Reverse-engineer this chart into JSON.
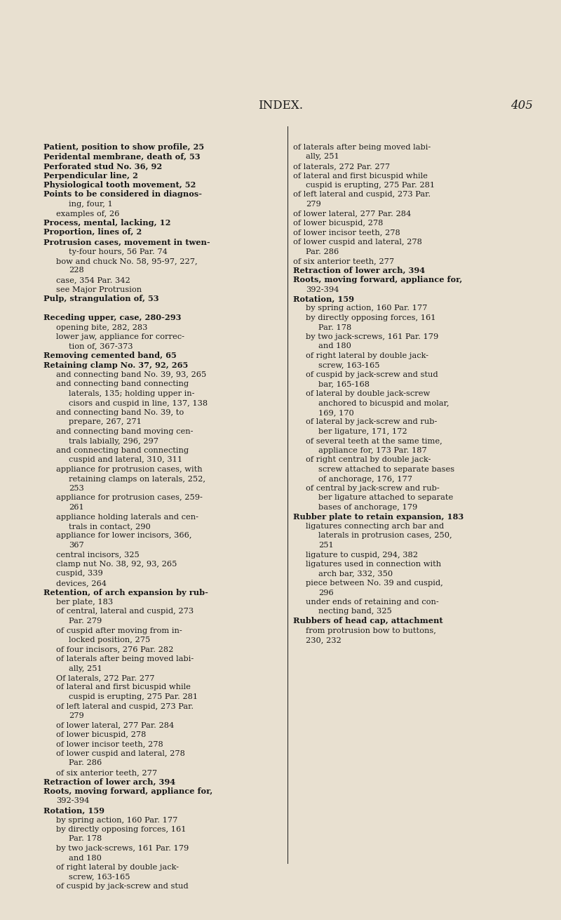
{
  "bg_color": "#e8e0d0",
  "text_color": "#1a1a1a",
  "title": "INDEX.",
  "page_num": "405",
  "font_size": 8.2,
  "title_font_size": 12,
  "left_column": [
    [
      "Patient, position to show profile, 25",
      "bold",
      0
    ],
    [
      "Peridental membrane, death of, 53",
      "bold",
      0
    ],
    [
      "Perforated stud No. 36, 92",
      "bold",
      0
    ],
    [
      "Perpendicular line, 2",
      "bold",
      0
    ],
    [
      "Physiological tooth movement, 52",
      "bold",
      0
    ],
    [
      "Points to be considered in diagnos-",
      "bold",
      0
    ],
    [
      "ing, four, 1",
      "normal",
      2
    ],
    [
      "examples of, 26",
      "normal",
      1
    ],
    [
      "Process, mental, lacking, 12",
      "bold",
      0
    ],
    [
      "Proportion, lines of, 2",
      "bold",
      0
    ],
    [
      "Protrusion cases, movement in twen-",
      "bold",
      0
    ],
    [
      "ty-four hours, 56 Par. 74",
      "normal",
      2
    ],
    [
      "bow and chuck No. 58, 95-97, 227,",
      "normal",
      1
    ],
    [
      "228",
      "normal",
      2
    ],
    [
      "case, 354 Par. 342",
      "normal",
      1
    ],
    [
      "see Major Protrusion",
      "normal",
      1
    ],
    [
      "Pulp, strangulation of, 53",
      "bold",
      0
    ],
    [
      "",
      "normal",
      0
    ],
    [
      "Receding upper, case, 280-293",
      "bold",
      0
    ],
    [
      "opening bite, 282, 283",
      "normal",
      1
    ],
    [
      "lower jaw, appliance for correc-",
      "normal",
      1
    ],
    [
      "tion of, 367-373",
      "normal",
      2
    ],
    [
      "Removing cemented band, 65",
      "bold",
      0
    ],
    [
      "Retaining clamp No. 37, 92, 265",
      "bold",
      0
    ],
    [
      "and connecting band No. 39, 93, 265",
      "normal",
      1
    ],
    [
      "and connecting band connecting",
      "normal",
      1
    ],
    [
      "laterals, 135; holding upper in-",
      "normal",
      2
    ],
    [
      "cisors and cuspid in line, 137, 138",
      "normal",
      2
    ],
    [
      "and connecting band No. 39, to",
      "normal",
      1
    ],
    [
      "prepare, 267, 271",
      "normal",
      2
    ],
    [
      "and connecting band moving cen-",
      "normal",
      1
    ],
    [
      "trals labially, 296, 297",
      "normal",
      2
    ],
    [
      "and connecting band connecting",
      "normal",
      1
    ],
    [
      "cuspid and lateral, 310, 311",
      "normal",
      2
    ],
    [
      "appliance for protrusion cases, with",
      "normal",
      1
    ],
    [
      "retaining clamps on laterals, 252,",
      "normal",
      2
    ],
    [
      "253",
      "normal",
      2
    ],
    [
      "appliance for protrusion cases, 259-",
      "normal",
      1
    ],
    [
      "261",
      "normal",
      2
    ],
    [
      "appliance holding laterals and cen-",
      "normal",
      1
    ],
    [
      "trals in contact, 290",
      "normal",
      2
    ],
    [
      "appliance for lower incisors, 366,",
      "normal",
      1
    ],
    [
      "367",
      "normal",
      2
    ],
    [
      "central incisors, 325",
      "normal",
      1
    ],
    [
      "clamp nut No. 38, 92, 93, 265",
      "normal",
      1
    ],
    [
      "cuspid, 339",
      "normal",
      1
    ],
    [
      "devices, 264",
      "normal",
      1
    ],
    [
      "Retention, of arch expansion by rub-",
      "bold",
      0
    ],
    [
      "ber plate, 183",
      "normal",
      1
    ],
    [
      "of central, lateral and cuspid, 273",
      "normal",
      1
    ],
    [
      "Par. 279",
      "normal",
      2
    ],
    [
      "of cuspid after moving from in-",
      "normal",
      1
    ],
    [
      "locked position, 275",
      "normal",
      2
    ],
    [
      "of four incisors, 276 Par. 282",
      "normal",
      1
    ],
    [
      "of laterals after being moved labi-",
      "normal",
      1
    ],
    [
      "ally, 251",
      "normal",
      2
    ],
    [
      "Of laterals, 272 Par. 277",
      "normal",
      1
    ],
    [
      "of lateral and first bicuspid while",
      "normal",
      1
    ],
    [
      "cuspid is erupting, 275 Par. 281",
      "normal",
      2
    ],
    [
      "of left lateral and cuspid, 273 Par.",
      "normal",
      1
    ],
    [
      "279",
      "normal",
      2
    ],
    [
      "of lower lateral, 277 Par. 284",
      "normal",
      1
    ],
    [
      "of lower bicuspid, 278",
      "normal",
      1
    ],
    [
      "of lower incisor teeth, 278",
      "normal",
      1
    ],
    [
      "of lower cuspid and lateral, 278",
      "normal",
      1
    ],
    [
      "Par. 286",
      "normal",
      2
    ],
    [
      "of six anterior teeth, 277",
      "normal",
      1
    ],
    [
      "Retraction of lower arch, 394",
      "bold",
      0
    ],
    [
      "Roots, moving forward, appliance for,",
      "bold",
      0
    ],
    [
      "392-394",
      "normal",
      1
    ],
    [
      "Rotation, 159",
      "bold",
      0
    ],
    [
      "by spring action, 160 Par. 177",
      "normal",
      1
    ],
    [
      "by directly opposing forces, 161",
      "normal",
      1
    ],
    [
      "Par. 178",
      "normal",
      2
    ],
    [
      "by two jack-screws, 161 Par. 179",
      "normal",
      1
    ],
    [
      "and 180",
      "normal",
      2
    ],
    [
      "of right lateral by double jack-",
      "normal",
      1
    ],
    [
      "screw, 163-165",
      "normal",
      2
    ],
    [
      "of cuspid by jack-screw and stud",
      "normal",
      1
    ],
    [
      "bar, 165-168",
      "normal",
      2
    ],
    [
      "of lateral by double jack-screw",
      "normal",
      1
    ],
    [
      "anchored to bicuspid and molar,",
      "normal",
      2
    ],
    [
      "169, 170",
      "normal",
      2
    ],
    [
      "of lateral by jack-screw and rub-",
      "normal",
      1
    ],
    [
      "ber ligature, 171, 172",
      "normal",
      2
    ],
    [
      "of several teeth at the same time,",
      "normal",
      1
    ],
    [
      "appliance for, 173 Par. 187",
      "normal",
      2
    ],
    [
      "of right central by double jack-",
      "normal",
      1
    ],
    [
      "screw attached to separate bases",
      "normal",
      2
    ],
    [
      "of anchorage, 176, 177",
      "normal",
      2
    ],
    [
      "of central by jack-screw and rub-",
      "normal",
      1
    ],
    [
      "ber ligature attached to separate",
      "normal",
      2
    ],
    [
      "bases of anchorage, 179",
      "normal",
      2
    ],
    [
      "Rubber plate to retain expansion, 183",
      "bold",
      0
    ],
    [
      "ligatures connecting arch bar and",
      "normal",
      1
    ],
    [
      "laterals in protrusion cases, 250,",
      "normal",
      2
    ],
    [
      "251",
      "normal",
      2
    ],
    [
      "ligature to cuspid, 294, 382",
      "normal",
      1
    ],
    [
      "ligatures used in connection with",
      "normal",
      1
    ],
    [
      "arch bar, 332, 350",
      "normal",
      2
    ],
    [
      "piece between No. 39 and cuspid,",
      "normal",
      1
    ],
    [
      "296",
      "normal",
      2
    ],
    [
      "under ends of retaining and con-",
      "normal",
      1
    ],
    [
      "necting band, 325",
      "normal",
      2
    ],
    [
      "Rubbers of head cap, attachment",
      "bold",
      0
    ],
    [
      "from protrusion bow to buttons,",
      "normal",
      1
    ],
    [
      "230, 232",
      "normal",
      1
    ]
  ],
  "right_column": [
    [
      "of laterals after being moved labi-",
      "normal",
      0
    ],
    [
      "ally, 251",
      "normal",
      1
    ],
    [
      "of laterals, 272 Par. 277",
      "normal",
      0
    ],
    [
      "of lateral and first bicuspid while",
      "normal",
      0
    ],
    [
      "cuspid is erupting, 275 Par. 281",
      "normal",
      1
    ],
    [
      "of left lateral and cuspid, 273 Par.",
      "normal",
      0
    ],
    [
      "279",
      "normal",
      1
    ],
    [
      "of lower lateral, 277 Par. 284",
      "normal",
      0
    ],
    [
      "of lower bicuspid, 278",
      "normal",
      0
    ],
    [
      "of lower incisor teeth, 278",
      "normal",
      0
    ],
    [
      "of lower cuspid and lateral, 278",
      "normal",
      0
    ],
    [
      "Par. 286",
      "normal",
      1
    ],
    [
      "of six anterior teeth, 277",
      "normal",
      0
    ],
    [
      "Retraction of lower arch, 394",
      "bold",
      0
    ],
    [
      "Roots, moving forward, appliance for,",
      "bold",
      0
    ],
    [
      "392-394",
      "normal",
      1
    ],
    [
      "Rotation, 159",
      "bold",
      0
    ],
    [
      "by spring action, 160 Par. 177",
      "normal",
      1
    ],
    [
      "by directly opposing forces, 161",
      "normal",
      1
    ],
    [
      "Par. 178",
      "normal",
      2
    ],
    [
      "by two jack-screws, 161 Par. 179",
      "normal",
      1
    ],
    [
      "and 180",
      "normal",
      2
    ],
    [
      "of right lateral by double jack-",
      "normal",
      1
    ],
    [
      "screw, 163-165",
      "normal",
      2
    ],
    [
      "of cuspid by jack-screw and stud",
      "normal",
      1
    ],
    [
      "bar, 165-168",
      "normal",
      2
    ],
    [
      "of lateral by double jack-screw",
      "normal",
      1
    ],
    [
      "anchored to bicuspid and molar,",
      "normal",
      2
    ],
    [
      "169, 170",
      "normal",
      2
    ],
    [
      "of lateral by jack-screw and rub-",
      "normal",
      1
    ],
    [
      "ber ligature, 171, 172",
      "normal",
      2
    ],
    [
      "of several teeth at the same time,",
      "normal",
      1
    ],
    [
      "appliance for, 173 Par. 187",
      "normal",
      2
    ],
    [
      "of right central by double jack-",
      "normal",
      1
    ],
    [
      "screw attached to separate bases",
      "normal",
      2
    ],
    [
      "of anchorage, 176, 177",
      "normal",
      2
    ],
    [
      "of central by jack-screw and rub-",
      "normal",
      1
    ],
    [
      "ber ligature attached to separate",
      "normal",
      2
    ],
    [
      "bases of anchorage, 179",
      "normal",
      2
    ],
    [
      "Rubber plate to retain expansion, 183",
      "bold",
      0
    ],
    [
      "ligatures connecting arch bar and",
      "normal",
      1
    ],
    [
      "laterals in protrusion cases, 250,",
      "normal",
      2
    ],
    [
      "251",
      "normal",
      2
    ],
    [
      "ligature to cuspid, 294, 382",
      "normal",
      1
    ],
    [
      "ligatures used in connection with",
      "normal",
      1
    ],
    [
      "arch bar, 332, 350",
      "normal",
      2
    ],
    [
      "piece between No. 39 and cuspid,",
      "normal",
      1
    ],
    [
      "296",
      "normal",
      2
    ],
    [
      "under ends of retaining and con-",
      "normal",
      1
    ],
    [
      "necting band, 325",
      "normal",
      2
    ],
    [
      "Rubbers of head cap, attachment",
      "bold",
      0
    ],
    [
      "from protrusion bow to buttons,",
      "normal",
      1
    ],
    [
      "230, 232",
      "normal",
      1
    ]
  ]
}
